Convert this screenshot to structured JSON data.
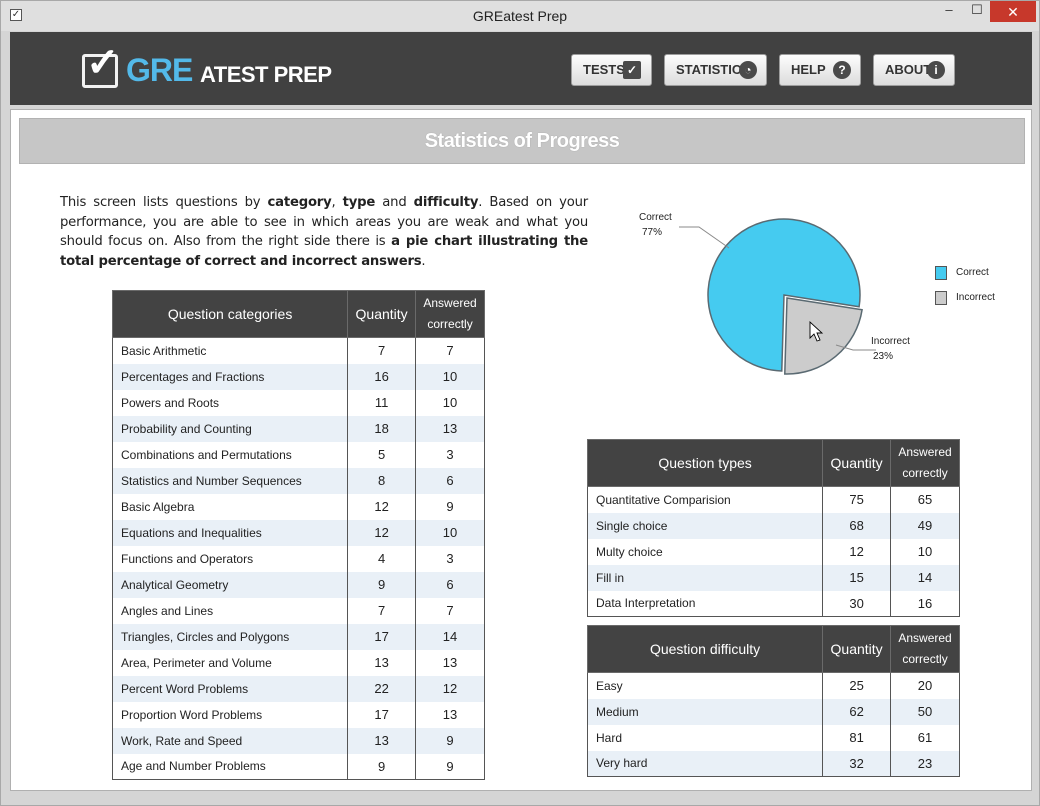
{
  "window": {
    "title": "GREatest Prep",
    "controls": {
      "minimize": "–",
      "maximize": "☐",
      "close": "✕"
    }
  },
  "logo": {
    "gre": "GRE",
    "rest": "ATEST PREP"
  },
  "nav": [
    {
      "label": "TESTS",
      "icon": "check-icon"
    },
    {
      "label": "STATISTICS",
      "icon": "pie-chart-icon"
    },
    {
      "label": "HELP",
      "icon": "help-icon"
    },
    {
      "label": "ABOUT",
      "icon": "info-icon"
    }
  ],
  "page": {
    "title": "Statistics of Progress",
    "intro": {
      "p1": "This screen lists questions by ",
      "category": "category",
      "p2": ", ",
      "type": "type",
      "p3": " and ",
      "difficulty": "difficulty",
      "p4": ". Based on your performance, you are able to see in which areas you are weak and what you should focus on. Also from the right side there is ",
      "bold_end": "a pie chart illustrating the total percentage of correct and incorrect answers",
      "p5": "."
    }
  },
  "categories_table": {
    "headers": [
      "Question categories",
      "Quantity",
      "Answered correctly"
    ],
    "rows": [
      [
        "Basic Arithmetic",
        "7",
        "7"
      ],
      [
        "Percentages and Fractions",
        "16",
        "10"
      ],
      [
        "Powers and Roots",
        "11",
        "10"
      ],
      [
        "Probability and Counting",
        "18",
        "13"
      ],
      [
        "Combinations and Permutations",
        "5",
        "3"
      ],
      [
        "Statistics and Number Sequences",
        "8",
        "6"
      ],
      [
        "Basic Algebra",
        "12",
        "9"
      ],
      [
        "Equations and Inequalities",
        "12",
        "10"
      ],
      [
        "Functions and Operators",
        "4",
        "3"
      ],
      [
        "Analytical Geometry",
        "9",
        "6"
      ],
      [
        "Angles and Lines",
        "7",
        "7"
      ],
      [
        "Triangles, Circles and Polygons",
        "17",
        "14"
      ],
      [
        "Area, Perimeter and Volume",
        "13",
        "13"
      ],
      [
        "Percent Word Problems",
        "22",
        "12"
      ],
      [
        "Proportion Word Problems",
        "17",
        "13"
      ],
      [
        "Work, Rate and Speed",
        "13",
        "9"
      ],
      [
        "Age and Number Problems",
        "9",
        "9"
      ]
    ]
  },
  "types_table": {
    "headers": [
      "Question types",
      "Quantity",
      "Answered correctly"
    ],
    "rows": [
      [
        "Quantitative Comparision",
        "75",
        "65"
      ],
      [
        "Single choice",
        "68",
        "49"
      ],
      [
        "Multy choice",
        "12",
        "10"
      ],
      [
        "Fill in",
        "15",
        "14"
      ],
      [
        "Data Interpretation",
        "30",
        "16"
      ]
    ]
  },
  "difficulty_table": {
    "headers": [
      "Question difficulty",
      "Quantity",
      "Answered correctly"
    ],
    "rows": [
      [
        "Easy",
        "25",
        "20"
      ],
      [
        "Medium",
        "62",
        "50"
      ],
      [
        "Hard",
        "81",
        "61"
      ],
      [
        "Very hard",
        "32",
        "23"
      ]
    ]
  },
  "chart_data": {
    "type": "pie",
    "title": "",
    "slices": [
      {
        "name": "Correct",
        "value": 77,
        "label": "77%",
        "color": "#45cbf0"
      },
      {
        "name": "Incorrect",
        "value": 23,
        "label": "23%",
        "color": "#cccccc"
      }
    ],
    "legend": {
      "placement": "right",
      "entries": [
        "Correct",
        "Incorrect"
      ]
    }
  }
}
